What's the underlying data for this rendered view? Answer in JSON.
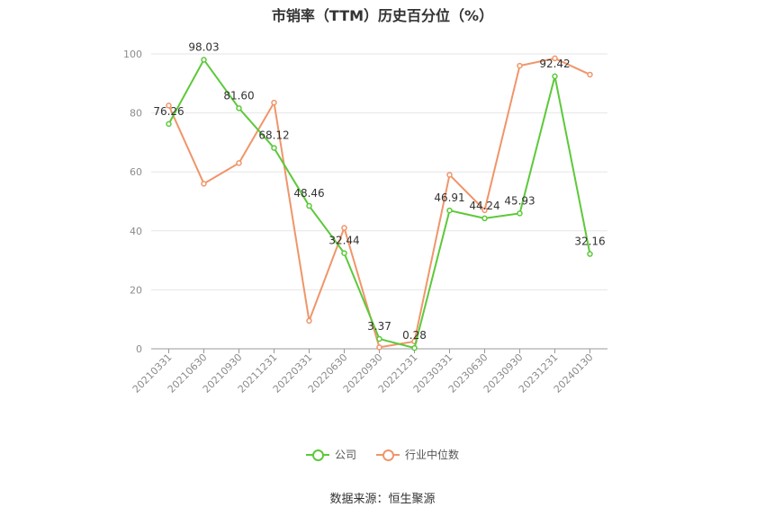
{
  "chart_data": {
    "type": "line",
    "title": "市销率（TTM）历史百分位（%）",
    "categories": [
      "20210331",
      "20210630",
      "20210930",
      "20211231",
      "20220331",
      "20220630",
      "20220930",
      "20221231",
      "20230331",
      "20230630",
      "20230930",
      "20231231",
      "20240130"
    ],
    "series": [
      {
        "name": "公司",
        "color": "#5cc93a",
        "values": [
          76.26,
          98.03,
          81.6,
          68.12,
          48.46,
          32.44,
          3.37,
          0.28,
          46.91,
          44.24,
          45.93,
          92.42,
          32.16
        ],
        "labels": [
          "76.26",
          "98.03",
          "81.60",
          "68.12",
          "48.46",
          "32.44",
          "3.37",
          "0.28",
          "46.91",
          "44.24",
          "45.93",
          "92.42",
          "32.16"
        ]
      },
      {
        "name": "行业中位数",
        "color": "#f0956a",
        "values": [
          82.5,
          56.0,
          63.0,
          83.5,
          9.5,
          41.0,
          0.5,
          2.5,
          59.0,
          47.0,
          96.0,
          98.5,
          93.0
        ]
      }
    ],
    "ylim": [
      0,
      100
    ],
    "yticks": [
      0,
      20,
      40,
      60,
      80,
      100
    ],
    "grid": true,
    "legend_position": "bottom"
  },
  "source": "数据来源：恒生聚源"
}
